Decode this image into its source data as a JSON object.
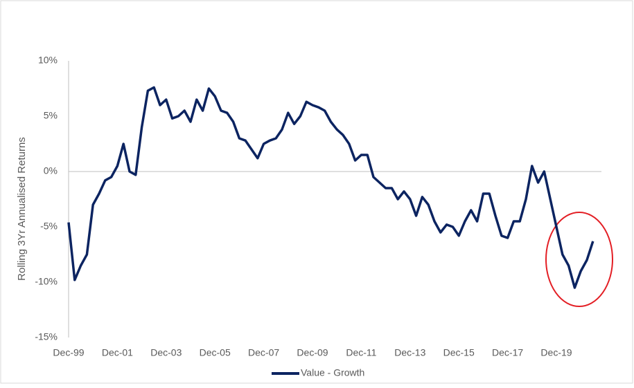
{
  "chart_data": {
    "type": "line",
    "y_label": "Rolling 3Yr Annualised Returns",
    "categories": [
      "Dec-99",
      null,
      null,
      null,
      null,
      null,
      null,
      null,
      "Dec-01",
      null,
      null,
      null,
      null,
      null,
      null,
      null,
      "Dec-03",
      null,
      null,
      null,
      null,
      null,
      null,
      null,
      "Dec-05",
      null,
      null,
      null,
      null,
      null,
      null,
      null,
      "Dec-07",
      null,
      null,
      null,
      null,
      null,
      null,
      null,
      "Dec-09",
      null,
      null,
      null,
      null,
      null,
      null,
      null,
      "Dec-11",
      null,
      null,
      null,
      null,
      null,
      null,
      null,
      "Dec-13",
      null,
      null,
      null,
      null,
      null,
      null,
      null,
      "Dec-15",
      null,
      null,
      null,
      null,
      null,
      null,
      null,
      "Dec-17",
      null,
      null,
      null,
      null,
      null,
      null,
      null,
      "Dec-19",
      null,
      null,
      null,
      null,
      null,
      null
    ],
    "series": [
      {
        "name": "Value - Growth",
        "color": "#0c2461",
        "values": [
          -4.6,
          -9.8,
          -8.5,
          -7.5,
          -3,
          -2,
          -0.8,
          -0.5,
          0.5,
          2.5,
          0,
          -0.3,
          4,
          7.3,
          7.6,
          6,
          6.5,
          4.8,
          5,
          5.5,
          4.5,
          6.5,
          5.5,
          7.5,
          6.8,
          5.5,
          5.3,
          4.5,
          3,
          2.8,
          2,
          1.2,
          2.5,
          2.8,
          3,
          3.8,
          5.3,
          4.3,
          5,
          6.3,
          6,
          5.8,
          5.5,
          4.5,
          3.8,
          3.3,
          2.5,
          1,
          1.5,
          1.5,
          -0.5,
          -1,
          -1.5,
          -1.5,
          -2.5,
          -1.8,
          -2.5,
          -4,
          -2.3,
          -3,
          -4.5,
          -5.5,
          -4.8,
          -5,
          -5.8,
          -4.5,
          -3.5,
          -4.5,
          -2,
          -2,
          -4,
          -5.8,
          -6,
          -4.5,
          -4.5,
          -2.5,
          0.5,
          -1,
          0,
          -2.5,
          -5,
          -7.5,
          -8.5,
          -10.5,
          -9,
          -8,
          -6.3
        ]
      }
    ],
    "ylim": [
      -15,
      10
    ],
    "yticks": [
      {
        "value": -15,
        "label": "-15%"
      },
      {
        "value": -10,
        "label": "-10%"
      },
      {
        "value": -5,
        "label": "-5%"
      },
      {
        "value": 0,
        "label": "0%"
      },
      {
        "value": 5,
        "label": "5%"
      },
      {
        "value": 10,
        "label": "10%"
      }
    ],
    "legend": "bottom"
  }
}
